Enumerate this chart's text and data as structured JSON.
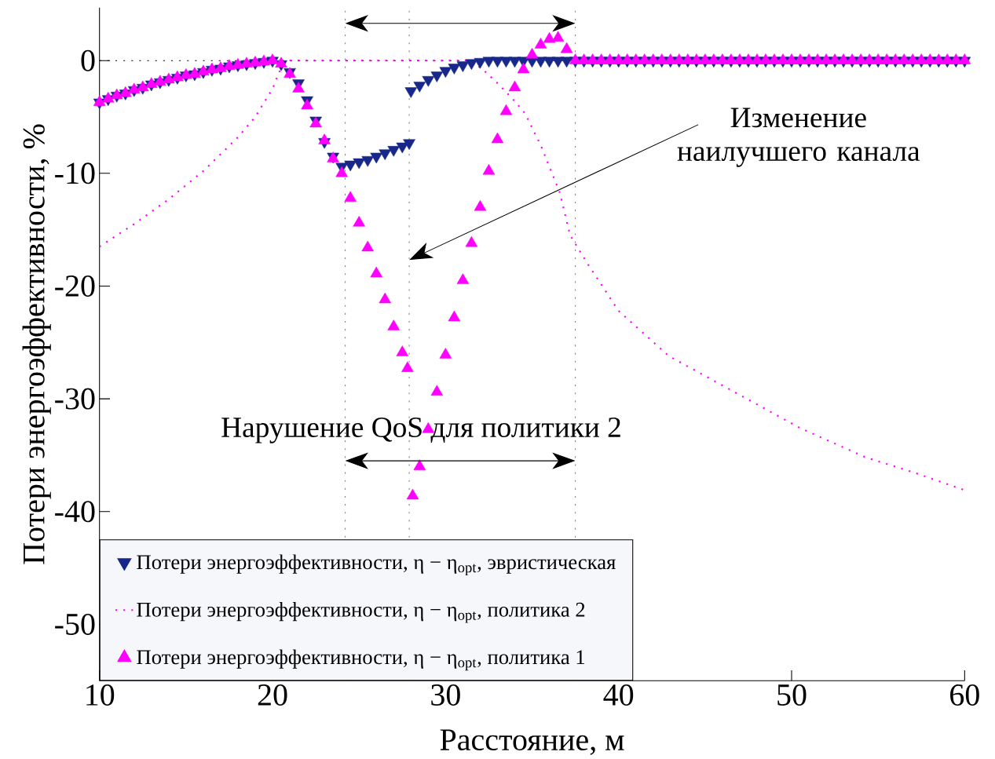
{
  "chart_data": {
    "type": "scatter",
    "xlabel": "Расстояние, м",
    "ylabel": "Потери энергоэффективности, %",
    "xlim": [
      10,
      60
    ],
    "ylim": [
      -55,
      4.7
    ],
    "xticks": [
      10,
      20,
      30,
      40,
      50,
      60
    ],
    "yticks": [
      0,
      -10,
      -20,
      -30,
      -40,
      -50
    ],
    "legend": "bottom left",
    "series": [
      {
        "name": "Потери энергоэффективности, η − η$_{opt}$, эвристическая",
        "color": "#18278a",
        "marker": "triangle down",
        "x": [
          10,
          10.5,
          11,
          11.5,
          12,
          12.5,
          13,
          13.5,
          14,
          14.5,
          15,
          15.5,
          16,
          16.5,
          17,
          17.5,
          18,
          18.5,
          19,
          19.5,
          20,
          20.5,
          21,
          21.5,
          22,
          22.5,
          23,
          23.5,
          24,
          24.5,
          25,
          25.5,
          26,
          26.5,
          27,
          27.5,
          27.9,
          28,
          28.5,
          29,
          29.5,
          30,
          30.5,
          31,
          31.5,
          32,
          32.5,
          33,
          33.5,
          34,
          34.5,
          35,
          35.5,
          36,
          36.5,
          37,
          37.5,
          38,
          38.5,
          39,
          39.5,
          40,
          40.5,
          41,
          41.5,
          42,
          42.5,
          43,
          43.5,
          44,
          44.5,
          45,
          45.5,
          46,
          46.5,
          47,
          47.5,
          48,
          48.5,
          49,
          49.5,
          50,
          50.5,
          51,
          51.5,
          52,
          52.5,
          53,
          53.5,
          54,
          54.5,
          55,
          55.5,
          56,
          56.5,
          57,
          57.5,
          58,
          58.5,
          59,
          59.5,
          60
        ],
        "values": [
          -3.7,
          -3.4,
          -3.1,
          -2.9,
          -2.6,
          -2.4,
          -2.1,
          -1.9,
          -1.7,
          -1.5,
          -1.3,
          -1.2,
          -1.0,
          -0.8,
          -0.7,
          -0.5,
          -0.4,
          -0.3,
          -0.2,
          -0.1,
          0,
          -0.3,
          -1.0,
          -2.0,
          -3.5,
          -5.3,
          -7.2,
          -8.5,
          -9.4,
          -9.2,
          -9.0,
          -8.8,
          -8.5,
          -8.2,
          -7.9,
          -7.6,
          -7.3,
          -2.7,
          -2.2,
          -1.7,
          -1.3,
          -0.9,
          -0.6,
          -0.4,
          -0.2,
          -0.1,
          0,
          0,
          0,
          0,
          0,
          0,
          0,
          0,
          0,
          0,
          0,
          0,
          0,
          0,
          0,
          0,
          0,
          0,
          0,
          0,
          0,
          0,
          0,
          0,
          0,
          0,
          0,
          0,
          0,
          0,
          0,
          0,
          0,
          0,
          0,
          0,
          0,
          0,
          0,
          0,
          0,
          0,
          0,
          0,
          0,
          0,
          0,
          0,
          0,
          0,
          0,
          0,
          0,
          0,
          0,
          0
        ]
      },
      {
        "name": "Потери энергоэффективности, η − η$_{opt}$, политика 2",
        "color": "#ff00ff",
        "type": "line",
        "marker": "none",
        "line_style": "dotted",
        "x": [
          10,
          12,
          14,
          16,
          18,
          19,
          20,
          20.5,
          21,
          25,
          30,
          31.5,
          32.3,
          33,
          34,
          34.6,
          35.5,
          36.6,
          37.2,
          38.2,
          40,
          42.9,
          46.7,
          50.5,
          54.3,
          57,
          60
        ],
        "values": [
          -16.5,
          -14.5,
          -12.3,
          -9.8,
          -6.8,
          -5.0,
          -2.5,
          -0.6,
          0,
          0,
          0,
          0,
          -1.0,
          -2.0,
          -3.6,
          -4.7,
          -7.5,
          -11.7,
          -15.5,
          -18.0,
          -22.2,
          -26.2,
          -29.4,
          -32.6,
          -35.2,
          -36.5,
          -38.1
        ]
      },
      {
        "name": "Потери энергоэффективности, η − η$_{opt}$, политика 1",
        "color": "#ff00ff",
        "marker": "triangle",
        "x": [
          10,
          10.5,
          11,
          11.5,
          12,
          12.5,
          13,
          13.5,
          14,
          14.5,
          15,
          15.5,
          16,
          16.5,
          17,
          17.5,
          18,
          18.5,
          19,
          19.5,
          20,
          20.5,
          21,
          21.5,
          22,
          22.5,
          23,
          23.5,
          24,
          24.5,
          25,
          25.5,
          26,
          26.5,
          27,
          27.5,
          27.8,
          28.1,
          28.5,
          29,
          29.5,
          30,
          30.5,
          31,
          31.5,
          32,
          32.5,
          33,
          33.5,
          34,
          34.5,
          35,
          35.5,
          36,
          36.5,
          37,
          37.5,
          38,
          38.5,
          39,
          39.5,
          40,
          40.5,
          41,
          41.5,
          42,
          42.5,
          43,
          43.5,
          44,
          44.5,
          45,
          45.5,
          46,
          46.5,
          47,
          47.5,
          48,
          48.5,
          49,
          49.5,
          50,
          50.5,
          51,
          51.5,
          52,
          52.5,
          53,
          53.5,
          54,
          54.5,
          55,
          55.5,
          56,
          56.5,
          57,
          57.5,
          58,
          58.5,
          59,
          59.5,
          60
        ],
        "values": [
          -3.7,
          -3.4,
          -3.1,
          -2.9,
          -2.6,
          -2.4,
          -2.1,
          -1.9,
          -1.7,
          -1.5,
          -1.3,
          -1.2,
          -1.0,
          -0.8,
          -0.7,
          -0.5,
          -0.4,
          -0.3,
          -0.2,
          -0.1,
          0,
          -0.3,
          -1.2,
          -2.5,
          -4.0,
          -5.6,
          -7.1,
          -8.7,
          -10.0,
          -12.2,
          -14.4,
          -16.6,
          -18.9,
          -21.2,
          -23.6,
          -25.9,
          -27.3,
          -38.6,
          -36.0,
          -32.7,
          -29.4,
          -26.1,
          -22.8,
          -19.5,
          -16.2,
          -13.0,
          -9.8,
          -7.0,
          -4.5,
          -2.4,
          -0.8,
          0.5,
          1.4,
          1.9,
          2.0,
          1.0,
          0,
          0,
          0,
          0,
          0,
          0,
          0,
          0,
          0,
          0,
          0,
          0,
          0,
          0,
          0,
          0,
          0,
          0,
          0,
          0,
          0,
          0,
          0,
          0,
          0,
          0,
          0,
          0,
          0,
          0,
          0,
          0,
          0,
          0,
          0,
          0,
          0,
          0,
          0,
          0,
          0,
          0,
          0,
          0,
          0,
          0
        ]
      }
    ],
    "ref_lines": [
      {
        "axis": "x",
        "value": 24.2,
        "color": "#808080",
        "line_style": "dotted"
      },
      {
        "axis": "x",
        "value": 27.9,
        "color": "#808080",
        "line_style": "dotted"
      },
      {
        "axis": "x",
        "value": 37.5,
        "color": "#808080",
        "line_style": "dotted"
      },
      {
        "axis": "y",
        "value": 0,
        "color": "#000000",
        "line_style": "dotted"
      }
    ],
    "annotations": [
      {
        "text": "Нарушение QoS для политики 2",
        "x": 28.6,
        "y": -32.8
      },
      "Изменение наилучшего канала"
    ]
  }
}
